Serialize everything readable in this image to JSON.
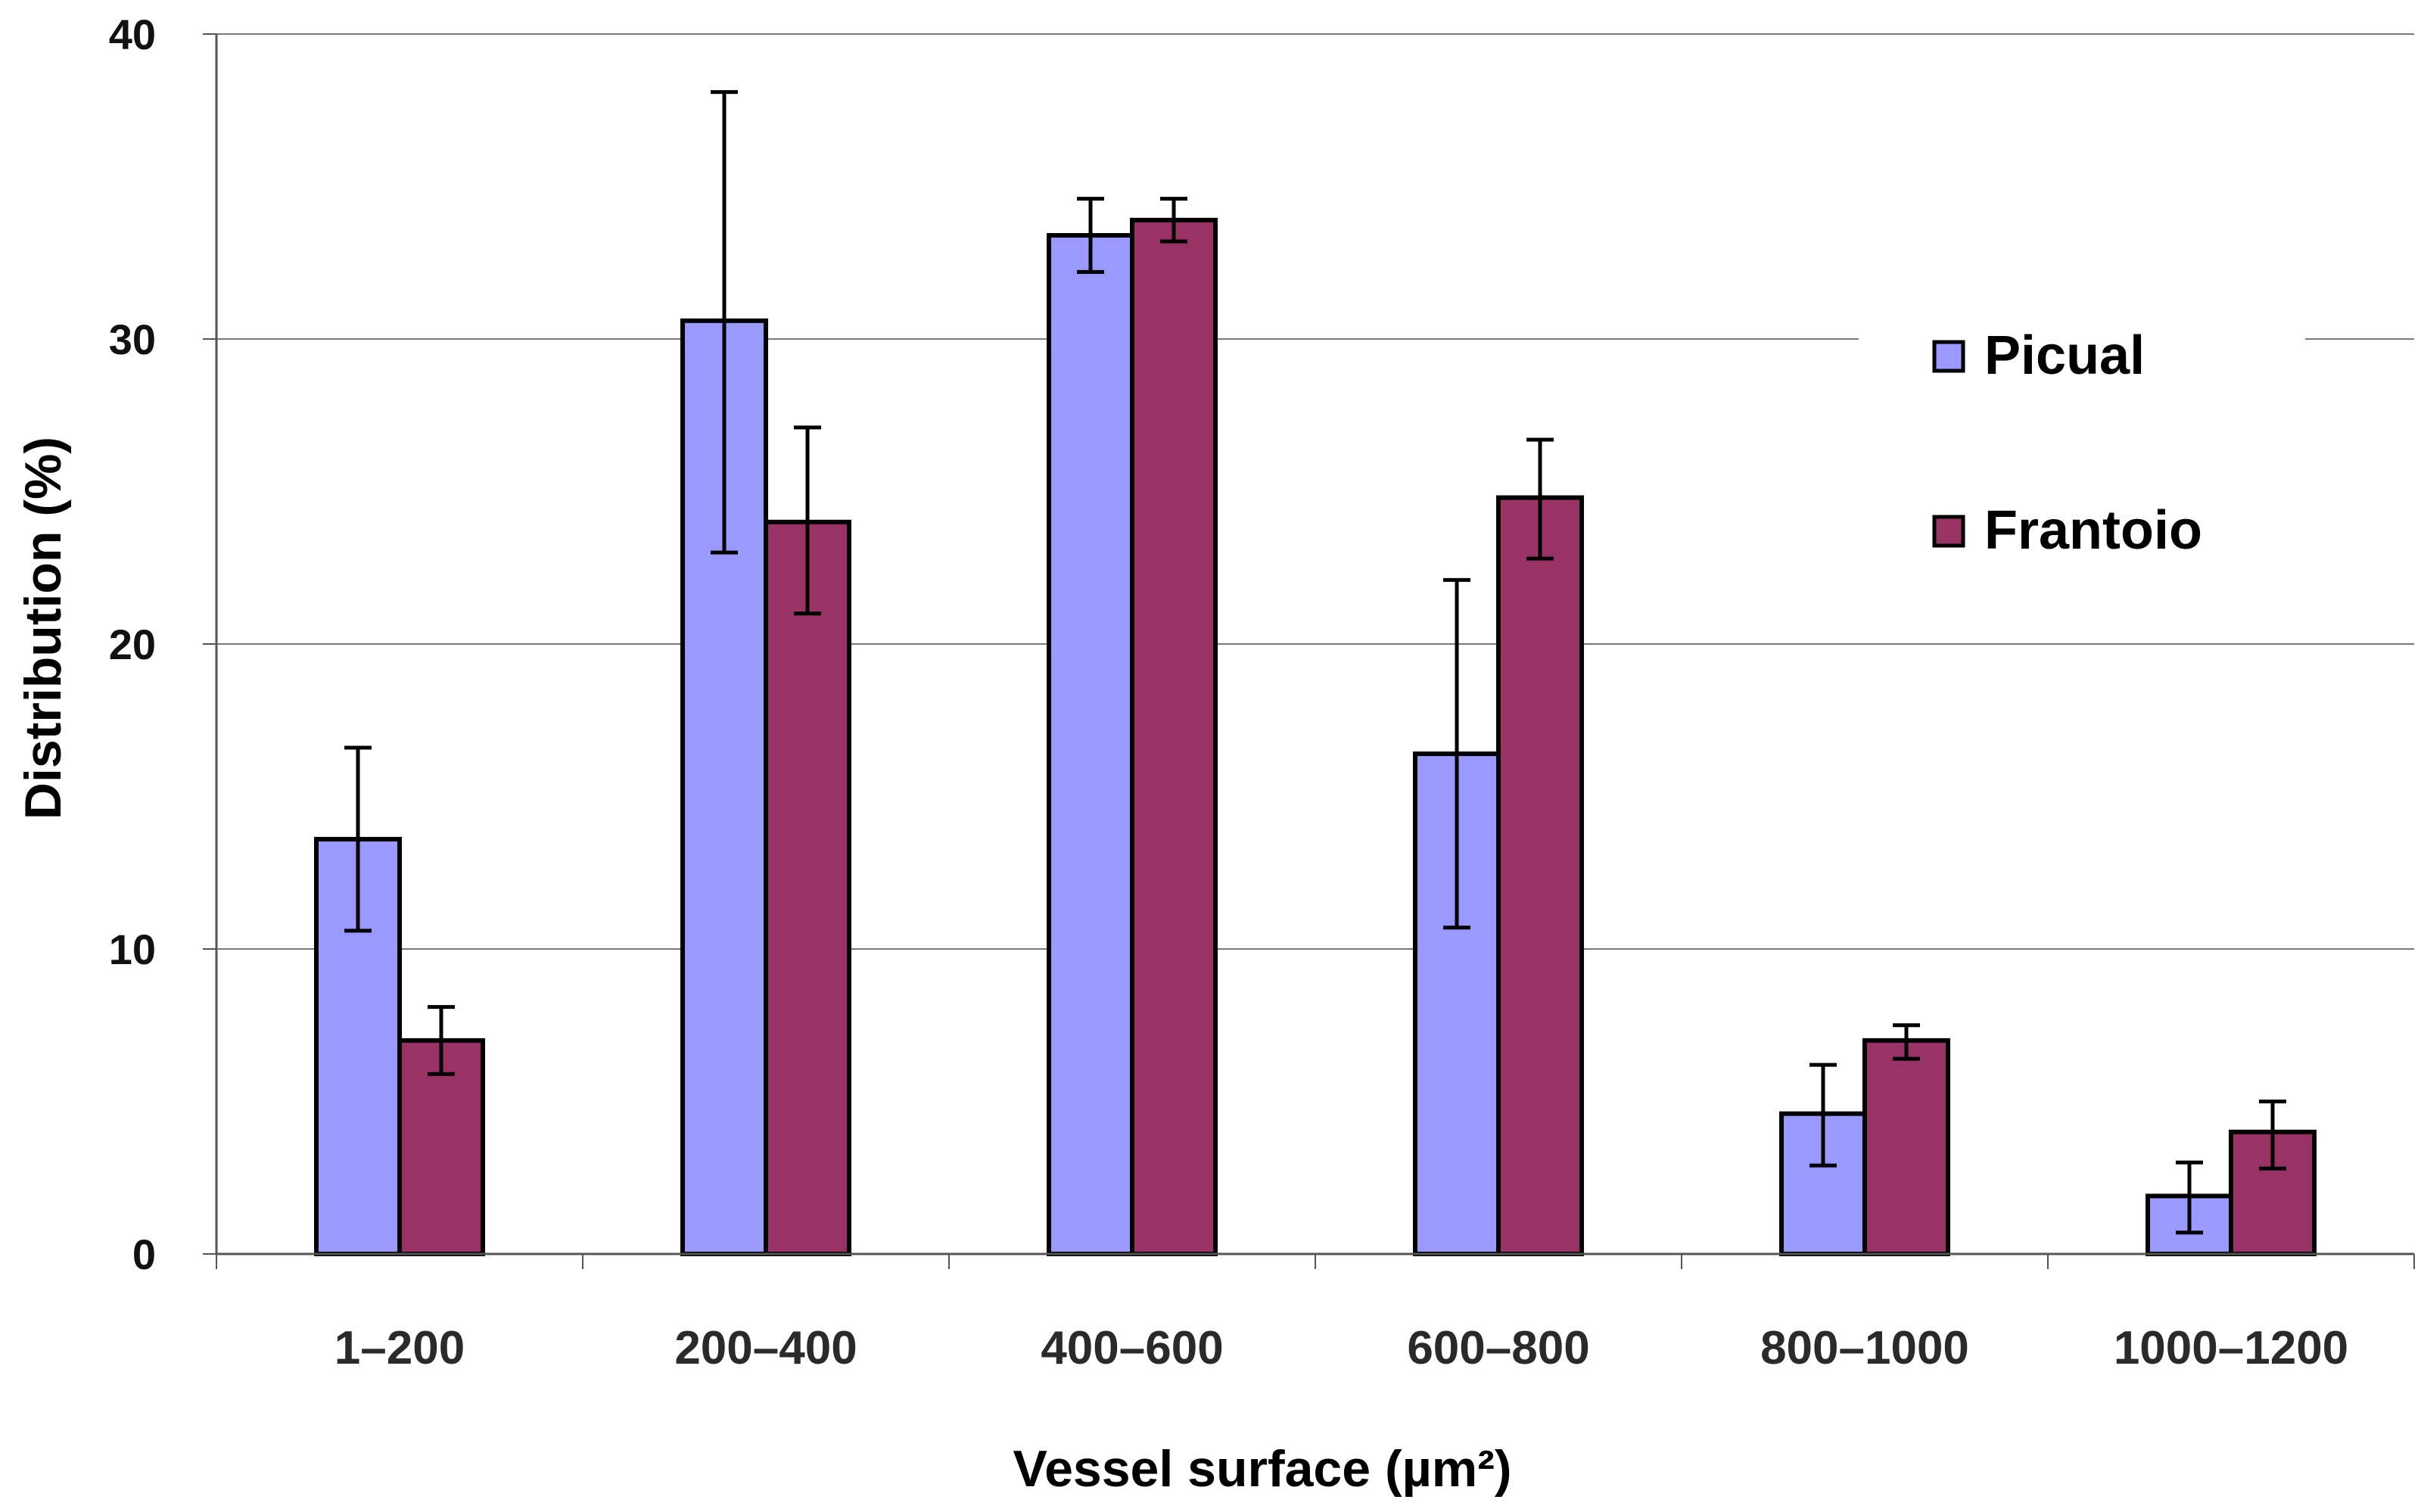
{
  "chart_data": {
    "type": "bar",
    "xlabel": "Vessel surface  (µm²)",
    "ylabel": "Distribution (%)",
    "ylim": [
      0,
      40
    ],
    "yticks": [
      0,
      10,
      20,
      30,
      40
    ],
    "grid": true,
    "legend_position": "right",
    "categories": [
      "1–200",
      "200–400",
      "400–600",
      "600–800",
      "800–1000",
      "1000–1200"
    ],
    "series": [
      {
        "name": "Picual",
        "color": "#9999ff",
        "values": [
          13.6,
          30.6,
          33.4,
          16.4,
          4.6,
          1.9
        ],
        "error_low": [
          10.6,
          23.0,
          32.2,
          10.7,
          2.9,
          0.7
        ],
        "error_high": [
          16.6,
          38.1,
          34.6,
          22.1,
          6.2,
          3.0
        ]
      },
      {
        "name": "Frantoio",
        "color": "#993366",
        "values": [
          7.0,
          24.0,
          33.9,
          24.8,
          7.0,
          4.0
        ],
        "error_low": [
          5.9,
          21.0,
          33.2,
          22.8,
          6.4,
          2.8
        ],
        "error_high": [
          8.1,
          27.1,
          34.6,
          26.7,
          7.5,
          5.0
        ]
      }
    ]
  }
}
